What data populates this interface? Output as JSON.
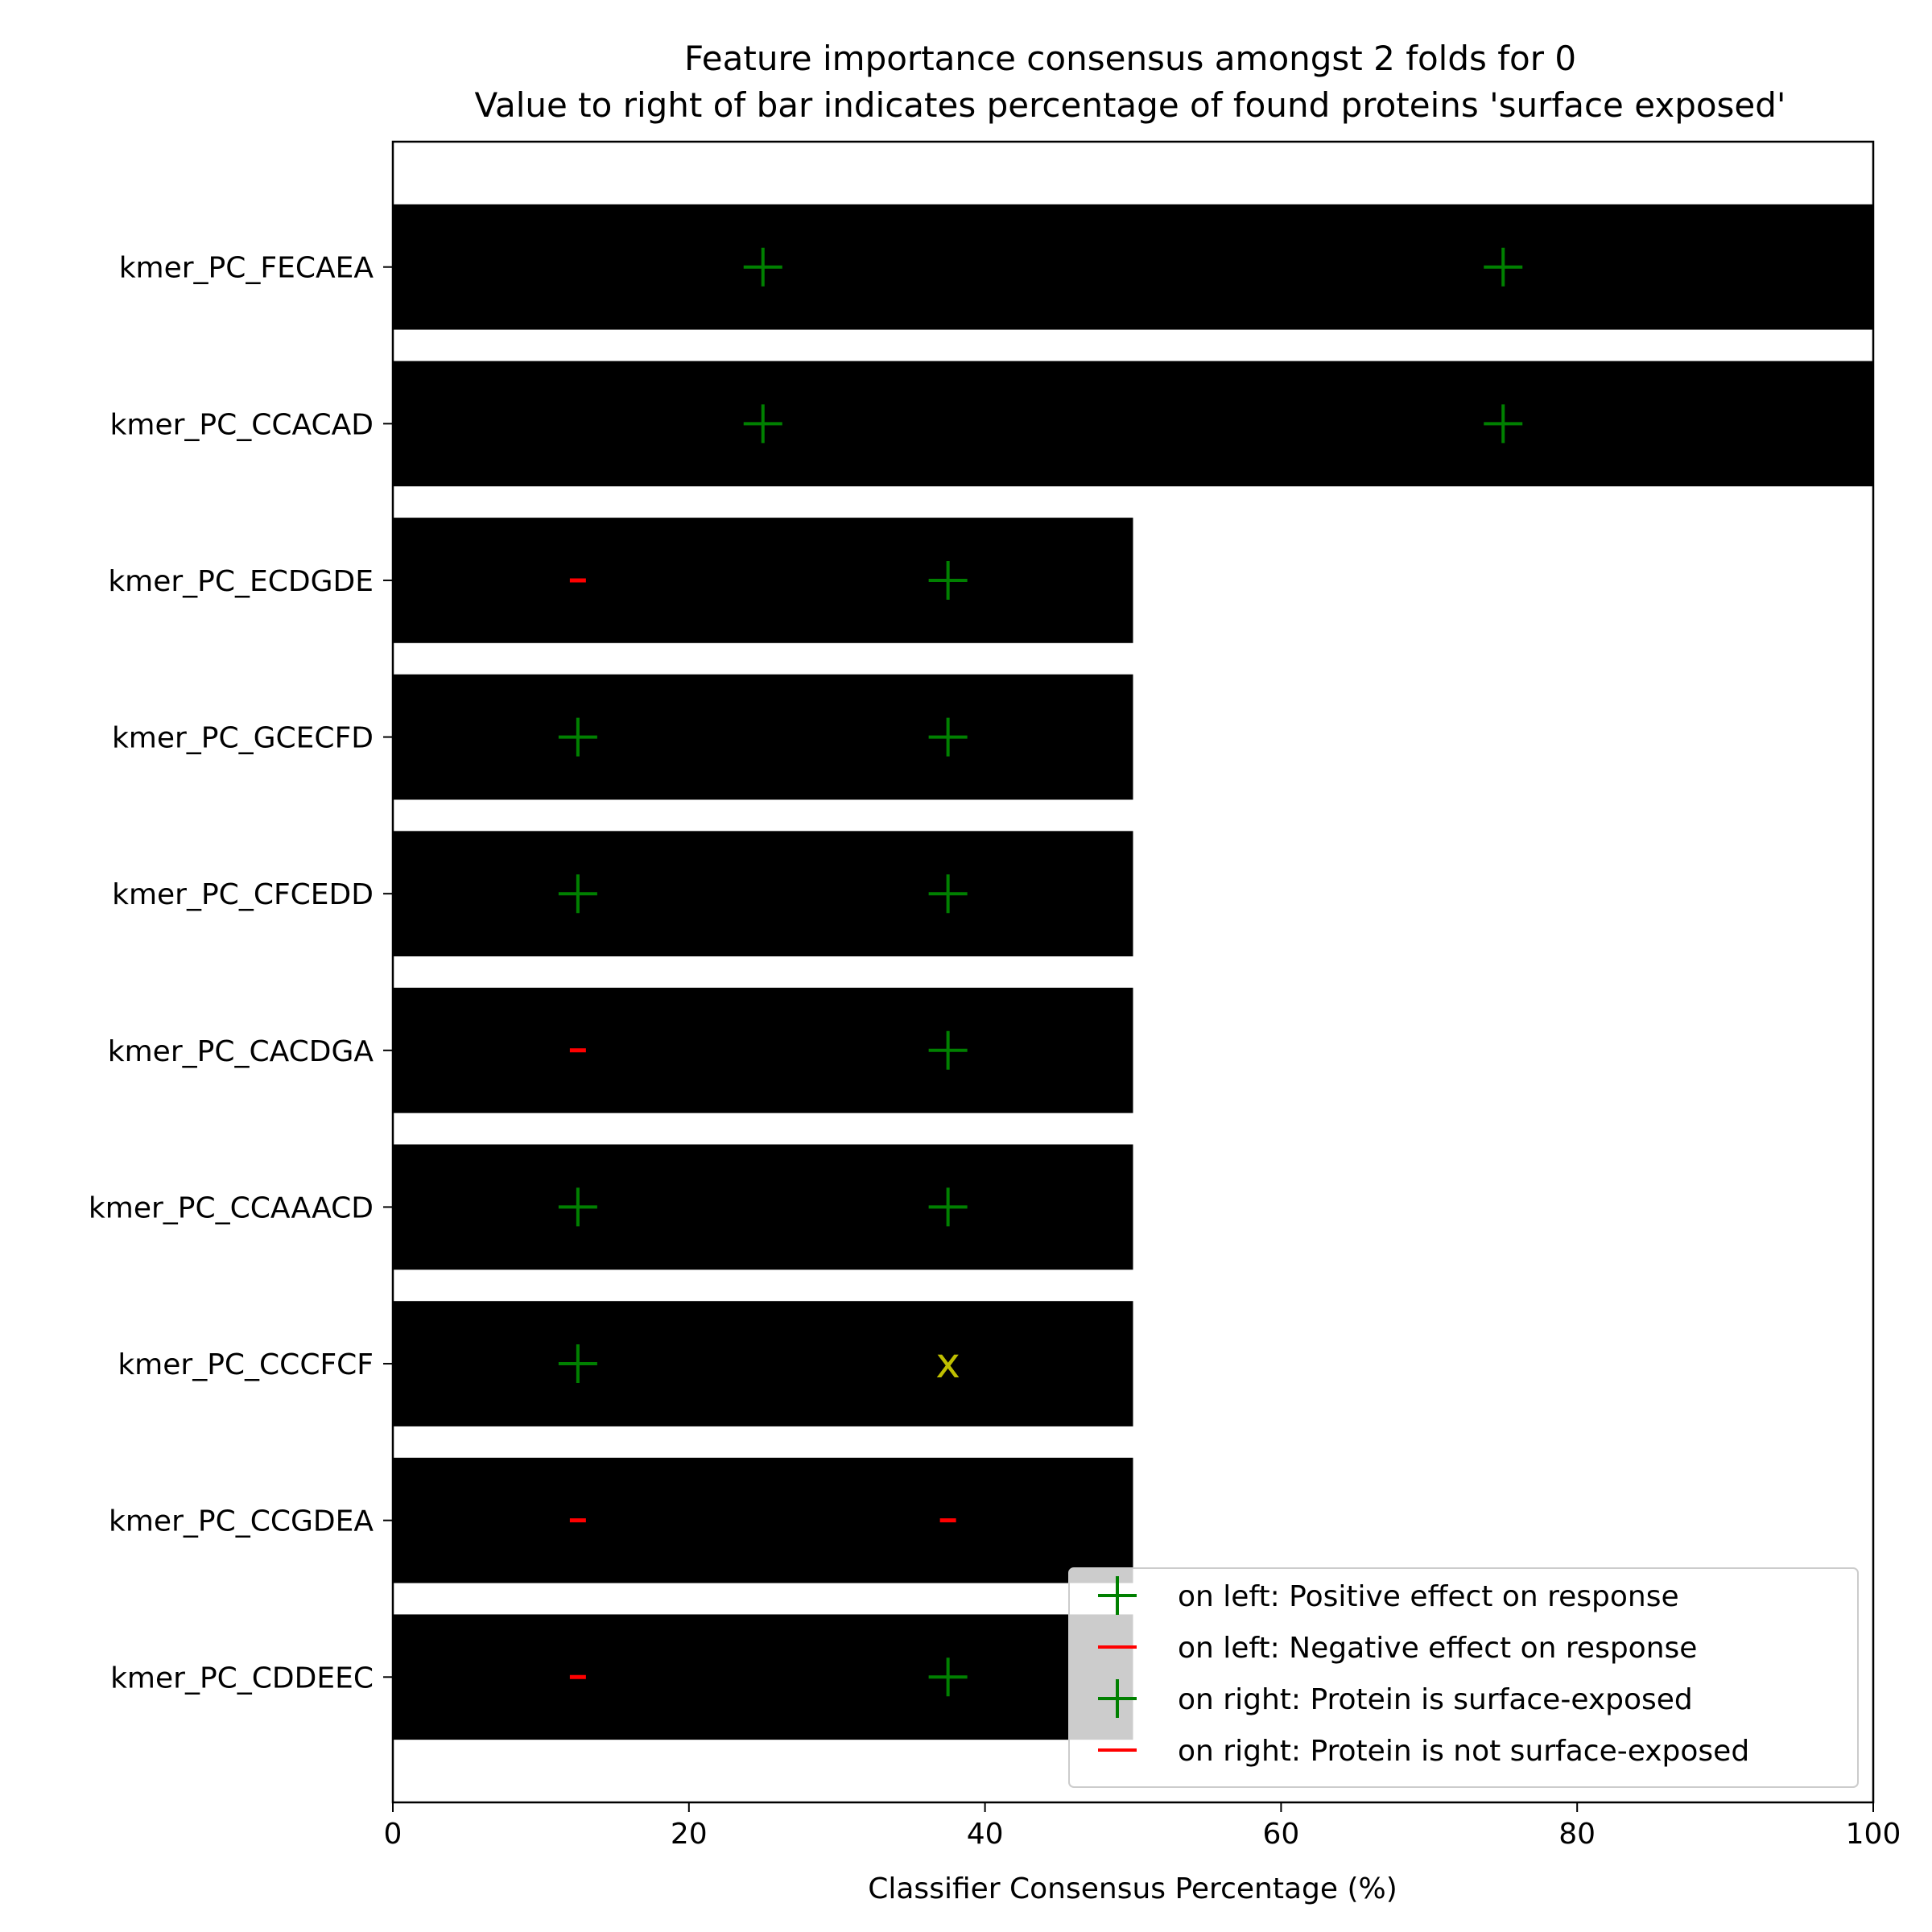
{
  "chart_data": {
    "type": "bar",
    "orientation": "horizontal",
    "title": "Feature importance consensus amongst 2 folds for 0",
    "subtitle": "Value to right of bar indicates percentage of found proteins 'surface exposed'",
    "xlabel": "Classifier Consensus Percentage (%)",
    "ylabel": "",
    "xlim": [
      0,
      100
    ],
    "xticks": [
      "0",
      "20",
      "40",
      "60",
      "80",
      "100"
    ],
    "grid": false,
    "legend_position": "lower-right",
    "categories": [
      "kmer_PC_FECAEA",
      "kmer_PC_CCACAD",
      "kmer_PC_ECDGDE",
      "kmer_PC_GCECFD",
      "kmer_PC_CFCEDD",
      "kmer_PC_CACDGA",
      "kmer_PC_CCAAACD",
      "kmer_PC_CCCFCF",
      "kmer_PC_CCGDEA",
      "kmer_PC_CDDEEC"
    ],
    "values": [
      100,
      100,
      50,
      50,
      50,
      50,
      50,
      50,
      50,
      50
    ],
    "left_markers": [
      "+",
      "+",
      "-",
      "+",
      "+",
      "-",
      "+",
      "+",
      "-",
      "-"
    ],
    "right_markers": [
      "+",
      "+",
      "+",
      "+",
      "+",
      "+",
      "+",
      "x",
      "-",
      "+"
    ],
    "legend": [
      {
        "marker": "+",
        "color": "#008000",
        "label": "on left: Positive effect on response"
      },
      {
        "marker": "-",
        "color": "#ff0000",
        "label": "on left: Negative effect on response"
      },
      {
        "marker": "+",
        "color": "#008000",
        "label": "on right: Protein is surface-exposed"
      },
      {
        "marker": "-",
        "color": "#ff0000",
        "label": "on right: Protein is not surface-exposed"
      }
    ],
    "colors": {
      "bar": "#000000",
      "positive": "#008000",
      "negative": "#ff0000",
      "unknown": "#bfbf00"
    }
  }
}
